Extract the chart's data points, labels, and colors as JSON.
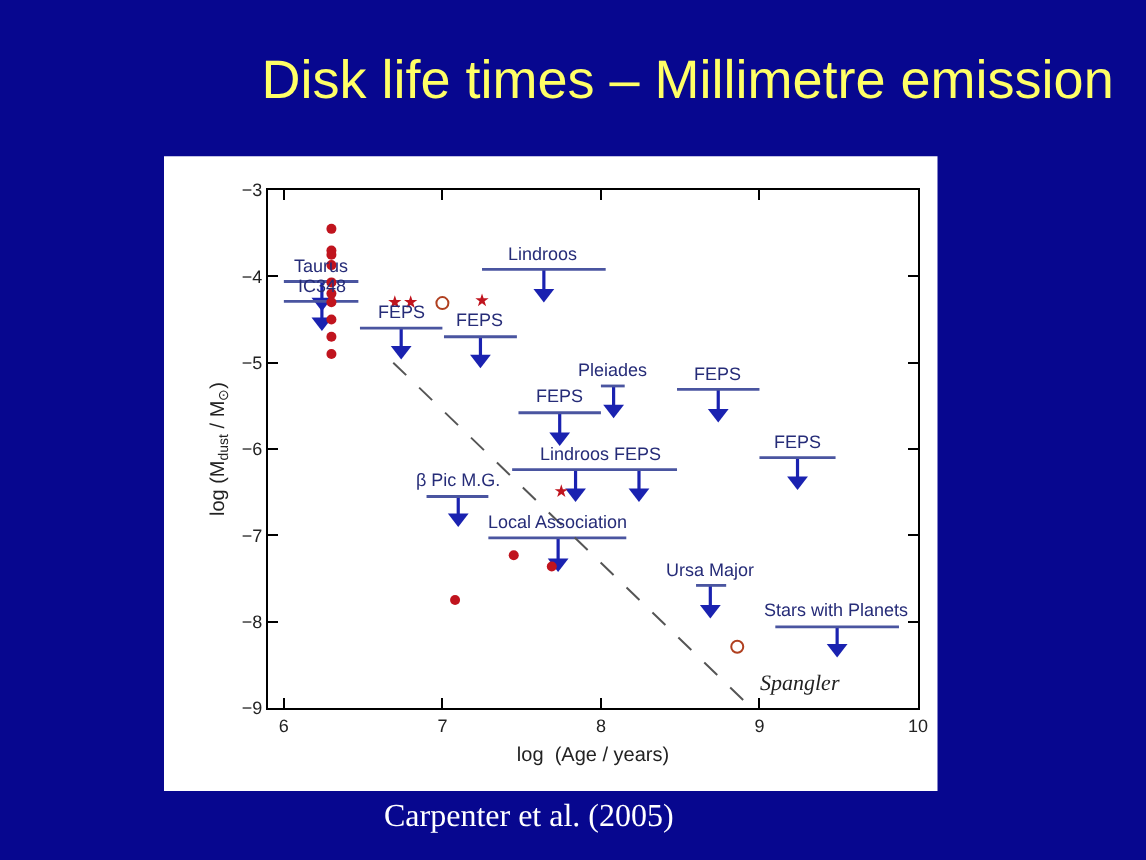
{
  "chart_data": {
    "type": "scatter",
    "title": "Disk life times – Millimetre emission",
    "xlabel": "log  (Age / years)",
    "ylabel": "log (M$_{dust}$ / M$_{⊙}$)",
    "xlim": [
      5.9,
      10
    ],
    "xticks": [
      6,
      7,
      8,
      9,
      10
    ],
    "ylim": [
      -9,
      -3
    ],
    "yticks": [
      -3,
      -4,
      -5,
      -6,
      -7,
      -8,
      -9
    ],
    "series": [
      {
        "marker": "circle",
        "color": "#c0141e",
        "x": [
          6.3,
          6.3,
          6.3,
          6.3,
          6.3,
          6.3,
          6.3,
          6.3,
          6.3,
          6.3,
          7.45,
          7.69,
          7.08
        ],
        "values": [
          -3.45,
          -3.7,
          -3.75,
          -3.87,
          -4.07,
          -4.2,
          -4.3,
          -4.5,
          -4.7,
          -4.9,
          -7.23,
          -7.36,
          -7.75
        ]
      },
      {
        "marker": "star",
        "color": "#c0141e",
        "x": [
          6.7,
          6.8,
          7.25,
          7.75
        ],
        "values": [
          -4.3,
          -4.3,
          -4.28,
          -6.49
        ]
      },
      {
        "marker": "circle-open",
        "color": "#b04020",
        "x": [
          7.0,
          8.86
        ],
        "values": [
          -4.31,
          -8.29
        ]
      },
      {
        "marker": "triangle",
        "color": "#1a22b0",
        "x": [
          6.24,
          6.24,
          6.74,
          7.24,
          7.64,
          8.08,
          8.74,
          7.74,
          9.24,
          7.84,
          8.24,
          7.1,
          7.73,
          8.69,
          9.49
        ],
        "values": [
          -4.3,
          -4.53,
          -4.86,
          -4.96,
          -4.2,
          -5.54,
          -5.59,
          -5.86,
          -6.37,
          -6.51,
          -6.51,
          -6.8,
          -7.32,
          -7.86,
          -8.31
        ],
        "errors": [
          [
            -4.3,
            -4.06
          ],
          [
            -4.53,
            -4.29
          ],
          [
            -4.86,
            -4.6
          ],
          [
            -4.96,
            -4.7
          ],
          [
            -4.2,
            -3.92
          ],
          [
            -5.54,
            -5.27
          ],
          [
            -5.59,
            -5.31
          ],
          [
            -5.86,
            -5.58
          ],
          [
            -6.37,
            -6.1
          ],
          [
            -6.51,
            -6.24
          ],
          [
            -6.51,
            -6.24
          ],
          [
            -6.8,
            -6.55
          ],
          [
            -7.32,
            -7.03
          ],
          [
            -7.86,
            -7.58
          ],
          [
            -8.31,
            -8.06
          ]
        ]
      },
      {
        "type": "line",
        "color": "#4a55a0",
        "marker": "none",
        "x": [
          6.0,
          6.47
        ],
        "values": [
          -4.06,
          -4.06
        ]
      },
      {
        "type": "line",
        "color": "#4a55a0",
        "marker": "none",
        "x": [
          6.0,
          6.47
        ],
        "values": [
          -4.29,
          -4.29
        ]
      },
      {
        "type": "line",
        "color": "#4a55a0",
        "marker": "none",
        "x": [
          6.48,
          7.0
        ],
        "values": [
          -4.6,
          -4.6
        ]
      },
      {
        "type": "line",
        "color": "#4a55a0",
        "marker": "none",
        "x": [
          7.01,
          7.47
        ],
        "values": [
          -4.7,
          -4.7
        ]
      },
      {
        "type": "line",
        "color": "#4a55a0",
        "marker": "none",
        "x": [
          7.25,
          8.03
        ],
        "values": [
          -3.92,
          -3.92
        ]
      },
      {
        "type": "line",
        "color": "#4a55a0",
        "marker": "none",
        "x": [
          8.0,
          8.15
        ],
        "values": [
          -5.27,
          -5.27
        ]
      },
      {
        "type": "line",
        "color": "#4a55a0",
        "marker": "none",
        "x": [
          8.48,
          9.0
        ],
        "values": [
          -5.31,
          -5.31
        ]
      },
      {
        "type": "line",
        "color": "#4a55a0",
        "marker": "none",
        "x": [
          7.48,
          8.0
        ],
        "values": [
          -5.58,
          -5.58
        ]
      },
      {
        "type": "line",
        "color": "#4a55a0",
        "marker": "none",
        "x": [
          9.0,
          9.48
        ],
        "values": [
          -6.1,
          -6.1
        ]
      },
      {
        "type": "line",
        "color": "#4a55a0",
        "marker": "none",
        "x": [
          7.44,
          8.48
        ],
        "values": [
          -6.24,
          -6.24
        ]
      },
      {
        "type": "line",
        "color": "#4a55a0",
        "marker": "none",
        "x": [
          6.9,
          7.29
        ],
        "values": [
          -6.55,
          -6.55
        ]
      },
      {
        "type": "line",
        "color": "#4a55a0",
        "marker": "none",
        "x": [
          7.29,
          8.16
        ],
        "values": [
          -7.03,
          -7.03
        ]
      },
      {
        "type": "line",
        "color": "#4a55a0",
        "marker": "none",
        "x": [
          8.6,
          8.79
        ],
        "values": [
          -7.58,
          -7.58
        ]
      },
      {
        "type": "line",
        "color": "#4a55a0",
        "marker": "none",
        "x": [
          9.1,
          9.88
        ],
        "values": [
          -8.06,
          -8.06
        ]
      },
      {
        "type": "line",
        "name": "Spangler",
        "color": "#555555",
        "line_style": "dashed",
        "marker": "none",
        "x": [
          6.69,
          8.95
        ],
        "values": [
          -5.0,
          -9.0
        ]
      }
    ],
    "annotations": [
      {
        "text": "Taurus",
        "x": 6.24,
        "y": -4.06
      },
      {
        "text": "IC348",
        "x": 6.24,
        "y": -4.29
      },
      {
        "text": "FEPS",
        "x": 6.74,
        "y": -4.6
      },
      {
        "text": "FEPS",
        "x": 7.24,
        "y": -4.7
      },
      {
        "text": "Lindroos",
        "x": 7.64,
        "y": -3.92
      },
      {
        "text": "Pleiades",
        "x": 8.08,
        "y": -5.27
      },
      {
        "text": "FEPS",
        "x": 8.74,
        "y": -5.31
      },
      {
        "text": "FEPS",
        "x": 7.74,
        "y": -5.58
      },
      {
        "text": "FEPS",
        "x": 9.24,
        "y": -6.1
      },
      {
        "text": "Lindroos",
        "x": 7.84,
        "y": -6.24
      },
      {
        "text": "FEPS",
        "x": 8.24,
        "y": -6.24
      },
      {
        "text": "β Pic M.G.",
        "x": 7.1,
        "y": -6.55
      },
      {
        "text": "Local Association",
        "x": 7.73,
        "y": -7.03
      },
      {
        "text": "Ursa Major",
        "x": 8.69,
        "y": -7.58
      },
      {
        "text": "Stars with Planets",
        "x": 9.49,
        "y": -8.06
      },
      "Carpenter et al. (2005)"
    ]
  }
}
